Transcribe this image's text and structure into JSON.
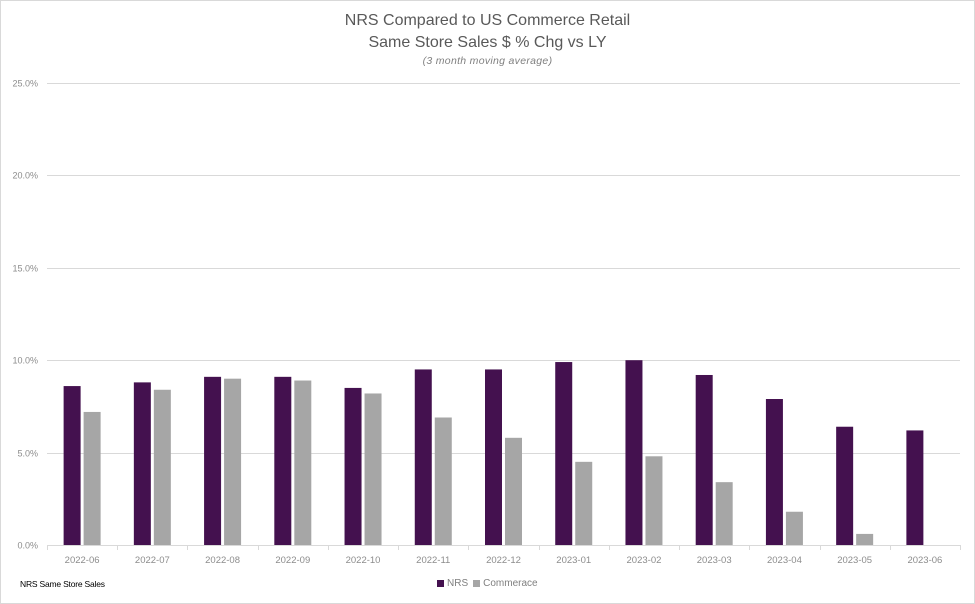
{
  "chart_data": {
    "type": "bar",
    "title": "NRS Compared to US Commerce Retail",
    "subtitle_line2": "Same Store Sales $ % Chg vs LY",
    "subtitle": "(3 month moving average)",
    "xlabel": "",
    "ylabel": "",
    "ylim": [
      0,
      25
    ],
    "yticks": [
      "0.0%",
      "5.0%",
      "10.0%",
      "15.0%",
      "20.0%",
      "25.0%"
    ],
    "ytick_values": [
      0,
      5,
      10,
      15,
      20,
      25
    ],
    "grid": true,
    "legend_position": "bottom-center",
    "categories": [
      "2022-06",
      "2022-07",
      "2022-08",
      "2022-09",
      "2022-10",
      "2022-11",
      "2022-12",
      "2023-01",
      "2023-02",
      "2023-03",
      "2023-04",
      "2023-05",
      "2023-06"
    ],
    "series": [
      {
        "name": "NRS",
        "color": "#44114f",
        "values": [
          8.6,
          8.8,
          9.1,
          9.1,
          8.5,
          9.5,
          9.5,
          9.9,
          10.0,
          9.2,
          7.9,
          6.4,
          6.2
        ]
      },
      {
        "name": "Commerace",
        "color": "#a6a6a6",
        "values": [
          7.2,
          8.4,
          9.0,
          8.9,
          8.2,
          6.9,
          5.8,
          4.5,
          4.8,
          3.4,
          1.8,
          0.6,
          null
        ]
      }
    ],
    "footnote": "NRS Same Store Sales"
  }
}
